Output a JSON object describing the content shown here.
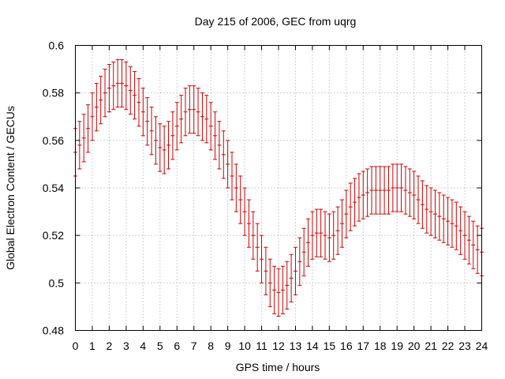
{
  "chart_data": {
    "type": "scatter",
    "title": "Day 215 of 2006, GEC from uqrg",
    "xlabel": "GPS time / hours",
    "ylabel": "Global Electron Content / GECUs",
    "xlim": [
      0,
      24
    ],
    "ylim": [
      0.48,
      0.6
    ],
    "xticks": [
      "0",
      "1",
      "2",
      "3",
      "4",
      "5",
      "6",
      "7",
      "8",
      "9",
      "10",
      "11",
      "12",
      "13",
      "14",
      "15",
      "16",
      "17",
      "18",
      "19",
      "20",
      "21",
      "22",
      "23",
      "24"
    ],
    "yticks": [
      "0.48",
      "0.5",
      "0.52",
      "0.54",
      "0.56",
      "0.58",
      "0.6"
    ],
    "grid": true,
    "series_color": "#cc0000",
    "error_halfwidth": 0.01,
    "x": [
      0.0,
      0.25,
      0.5,
      0.75,
      1.0,
      1.25,
      1.5,
      1.75,
      2.0,
      2.25,
      2.5,
      2.75,
      3.0,
      3.25,
      3.5,
      3.75,
      4.0,
      4.25,
      4.5,
      4.75,
      5.0,
      5.25,
      5.5,
      5.75,
      6.0,
      6.25,
      6.5,
      6.75,
      7.0,
      7.25,
      7.5,
      7.75,
      8.0,
      8.25,
      8.5,
      8.75,
      9.0,
      9.25,
      9.5,
      9.75,
      10.0,
      10.25,
      10.5,
      10.75,
      11.0,
      11.25,
      11.5,
      11.75,
      12.0,
      12.25,
      12.5,
      12.75,
      13.0,
      13.25,
      13.5,
      13.75,
      14.0,
      14.25,
      14.5,
      14.75,
      15.0,
      15.25,
      15.5,
      15.75,
      16.0,
      16.25,
      16.5,
      16.75,
      17.0,
      17.25,
      17.5,
      17.75,
      18.0,
      18.25,
      18.5,
      18.75,
      19.0,
      19.25,
      19.5,
      19.75,
      20.0,
      20.25,
      20.5,
      20.75,
      21.0,
      21.25,
      21.5,
      21.75,
      22.0,
      22.25,
      22.5,
      22.75,
      23.0,
      23.25,
      23.5,
      23.75,
      24.0
    ],
    "values": [
      0.555,
      0.558,
      0.561,
      0.565,
      0.57,
      0.574,
      0.577,
      0.58,
      0.582,
      0.583,
      0.584,
      0.584,
      0.583,
      0.581,
      0.579,
      0.576,
      0.572,
      0.568,
      0.564,
      0.56,
      0.557,
      0.556,
      0.558,
      0.562,
      0.566,
      0.569,
      0.572,
      0.573,
      0.573,
      0.572,
      0.57,
      0.569,
      0.566,
      0.562,
      0.558,
      0.554,
      0.55,
      0.545,
      0.54,
      0.535,
      0.53,
      0.525,
      0.52,
      0.515,
      0.51,
      0.505,
      0.5,
      0.497,
      0.496,
      0.497,
      0.499,
      0.502,
      0.505,
      0.509,
      0.513,
      0.517,
      0.52,
      0.521,
      0.521,
      0.52,
      0.519,
      0.52,
      0.522,
      0.525,
      0.529,
      0.532,
      0.534,
      0.536,
      0.537,
      0.538,
      0.539,
      0.539,
      0.539,
      0.539,
      0.539,
      0.54,
      0.54,
      0.54,
      0.539,
      0.538,
      0.537,
      0.535,
      0.533,
      0.531,
      0.53,
      0.529,
      0.528,
      0.527,
      0.526,
      0.525,
      0.524,
      0.522,
      0.52,
      0.518,
      0.516,
      0.514,
      0.513
    ]
  }
}
